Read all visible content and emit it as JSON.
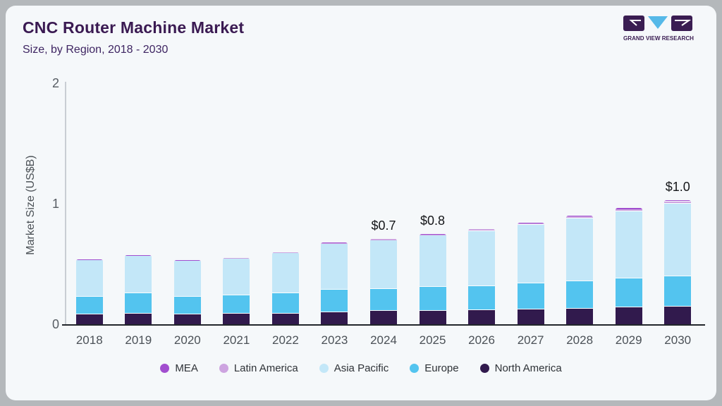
{
  "header": {
    "title": "CNC Router Machine Market",
    "subtitle": "Size, by Region, 2018 - 2030"
  },
  "logo": {
    "text": "GRAND VIEW RESEARCH"
  },
  "chart_data": {
    "type": "bar",
    "stacked": true,
    "title": "CNC Router Machine Market Size, by Region, 2018 - 2030",
    "ylabel": "Market Size (US$B)",
    "ylim": [
      0,
      2
    ],
    "yticks": [
      0,
      1,
      2
    ],
    "grid": false,
    "legend_position": "bottom",
    "categories": [
      "2018",
      "2019",
      "2020",
      "2021",
      "2022",
      "2023",
      "2024",
      "2025",
      "2026",
      "2027",
      "2028",
      "2029",
      "2030"
    ],
    "series": [
      {
        "name": "North America",
        "color": "#311a4d",
        "values": [
          0.08,
          0.09,
          0.08,
          0.085,
          0.09,
          0.1,
          0.11,
          0.11,
          0.115,
          0.12,
          0.13,
          0.14,
          0.145
        ]
      },
      {
        "name": "Europe",
        "color": "#53c4ef",
        "values": [
          0.15,
          0.17,
          0.15,
          0.155,
          0.17,
          0.185,
          0.185,
          0.2,
          0.2,
          0.22,
          0.225,
          0.24,
          0.255
        ]
      },
      {
        "name": "Asia Pacific",
        "color": "#c3e7f8",
        "values": [
          0.3,
          0.305,
          0.295,
          0.305,
          0.33,
          0.38,
          0.4,
          0.425,
          0.46,
          0.485,
          0.525,
          0.555,
          0.6
        ]
      },
      {
        "name": "Latin America",
        "color": "#cda4e0",
        "values": [
          0.004,
          0.004,
          0.004,
          0.005,
          0.006,
          0.008,
          0.01,
          0.01,
          0.012,
          0.012,
          0.015,
          0.018,
          0.02
        ]
      },
      {
        "name": "MEA",
        "color": "#a14ecf",
        "values": [
          0.002,
          0.002,
          0.002,
          0.002,
          0.003,
          0.004,
          0.004,
          0.005,
          0.005,
          0.006,
          0.008,
          0.01,
          0.012
        ]
      }
    ],
    "annotations": [
      {
        "category": "2024",
        "label": "$0.7"
      },
      {
        "category": "2025",
        "label": "$0.8"
      },
      {
        "category": "2030",
        "label": "$1.0"
      }
    ]
  },
  "colors": {
    "card_background": "#f5f8fa",
    "frame": "#b4b8bb",
    "title_text": "#3a1a52",
    "axis_text": "#575d63",
    "annotation_text": "#141619"
  }
}
